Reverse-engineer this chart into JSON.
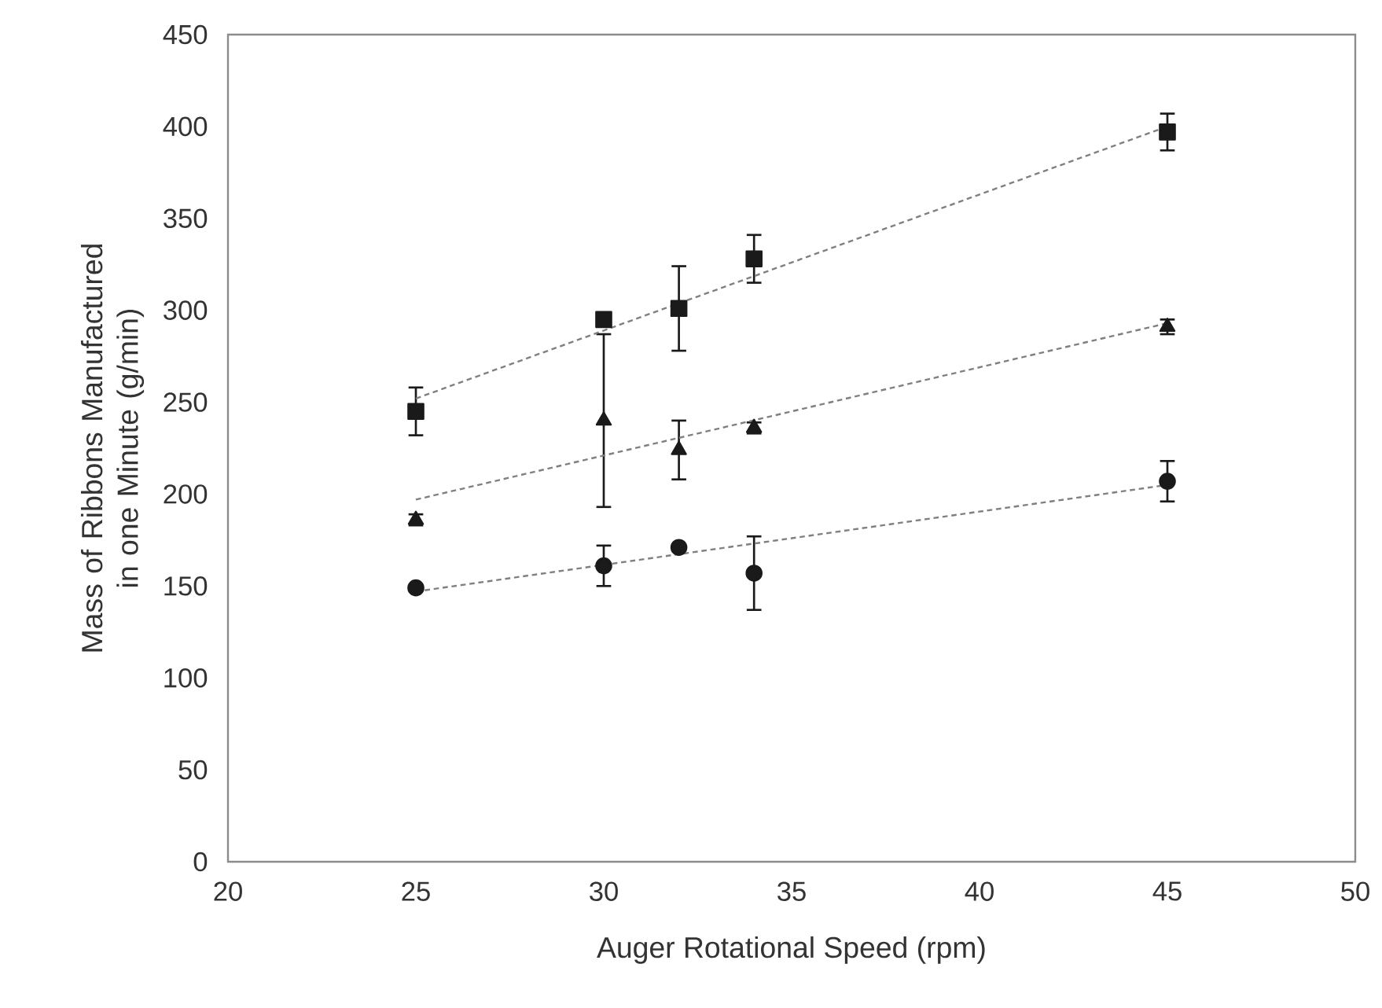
{
  "chart_data": {
    "type": "scatter",
    "xlabel": "Auger Rotational Speed (rpm)",
    "ylabel": "Mass of Ribbons Manufactured in one Minute (g/min)",
    "xlim": [
      20,
      50
    ],
    "xticks": [
      20,
      25,
      30,
      35,
      40,
      45,
      50
    ],
    "ylim": [
      0,
      450
    ],
    "yticks": [
      0,
      50,
      100,
      150,
      200,
      250,
      300,
      350,
      400,
      450
    ],
    "series": [
      {
        "marker": "square",
        "color": "#1a1a1a",
        "x": [
          25,
          30,
          32,
          34,
          45
        ],
        "values": [
          245,
          295,
          301,
          328,
          397
        ],
        "errors": [
          13,
          null,
          23,
          13,
          10
        ]
      },
      {
        "marker": "triangle",
        "color": "#1a1a1a",
        "x": [
          25,
          30,
          32,
          34,
          45
        ],
        "values": [
          186,
          240,
          224,
          236,
          291
        ],
        "errors": [
          3,
          47,
          16,
          3,
          4
        ]
      },
      {
        "marker": "circle",
        "color": "#1a1a1a",
        "x": [
          25,
          30,
          32,
          34,
          45
        ],
        "values": [
          149,
          161,
          171,
          157,
          207
        ],
        "errors": [
          null,
          11,
          null,
          20,
          11
        ]
      },
      {
        "type": "line",
        "marker": "none",
        "line_style": "dashed",
        "color": "#808080",
        "x": [
          25,
          45
        ],
        "values": [
          252,
          400
        ]
      },
      {
        "type": "line",
        "marker": "none",
        "line_style": "dashed",
        "color": "#808080",
        "x": [
          25,
          45
        ],
        "values": [
          197,
          293
        ]
      },
      {
        "type": "line",
        "marker": "none",
        "line_style": "dashed",
        "color": "#808080",
        "x": [
          25,
          45
        ],
        "values": [
          147,
          205
        ]
      }
    ]
  }
}
